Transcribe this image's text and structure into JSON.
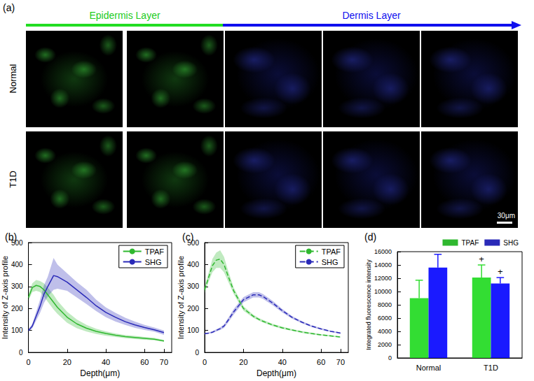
{
  "figure": {
    "panel_a": {
      "label": "(a)",
      "header": [
        "Epidermis Layer",
        "Dermis Layer"
      ],
      "rows": [
        "Normal",
        "T1D"
      ],
      "scale_bar": "30μm"
    }
  },
  "chart_data": [
    {
      "type": "line",
      "title": "(b)",
      "x_label": "Depth(μm)",
      "y_label": "Intensity of Z-axis profile",
      "x": [
        0,
        2,
        4,
        6,
        8,
        10,
        13,
        15,
        20,
        25,
        30,
        35,
        40,
        45,
        50,
        55,
        60,
        65,
        70
      ],
      "xlim": [
        0,
        74
      ],
      "xticks": [
        0,
        20,
        40,
        60,
        70
      ],
      "ylim": [
        0,
        500
      ],
      "yticks": [
        0,
        100,
        200,
        300,
        400,
        500
      ],
      "grid": false,
      "legend": "upper right",
      "series": [
        {
          "name": "TPAF",
          "color": "#2fb82f",
          "line_style": "solid",
          "marker": "none",
          "values": [
            250,
            295,
            305,
            300,
            285,
            262,
            228,
            205,
            160,
            130,
            110,
            96,
            86,
            78,
            72,
            68,
            64,
            60,
            52
          ],
          "lower": [
            235,
            275,
            280,
            275,
            255,
            230,
            195,
            175,
            135,
            110,
            95,
            84,
            76,
            70,
            65,
            61,
            58,
            55,
            48
          ],
          "upper": [
            265,
            315,
            330,
            325,
            315,
            295,
            262,
            235,
            185,
            150,
            125,
            108,
            96,
            86,
            79,
            75,
            70,
            66,
            57
          ]
        },
        {
          "name": "SHG",
          "color": "#2a2ab8",
          "line_style": "solid",
          "marker": "none",
          "values": [
            100,
            120,
            165,
            210,
            265,
            300,
            350,
            345,
            320,
            285,
            250,
            212,
            182,
            160,
            140,
            125,
            113,
            103,
            90
          ],
          "lower": [
            95,
            110,
            145,
            180,
            225,
            255,
            285,
            290,
            280,
            250,
            220,
            188,
            160,
            140,
            125,
            112,
            102,
            94,
            80
          ],
          "upper": [
            105,
            130,
            185,
            240,
            305,
            345,
            430,
            400,
            360,
            320,
            285,
            240,
            205,
            180,
            158,
            140,
            125,
            113,
            100
          ]
        }
      ]
    },
    {
      "type": "line",
      "title": "(c)",
      "x_label": "Depth(μm)",
      "y_label": "Intensity of Z-axis profile",
      "x": [
        0,
        2,
        4,
        6,
        8,
        10,
        12,
        15,
        20,
        25,
        28,
        30,
        35,
        40,
        45,
        50,
        55,
        60,
        65,
        70
      ],
      "xlim": [
        0,
        74
      ],
      "xticks": [
        0,
        20,
        40,
        60,
        70
      ],
      "ylim": [
        0,
        500
      ],
      "yticks": [
        0,
        100,
        200,
        300,
        400,
        500
      ],
      "grid": false,
      "legend": "upper right",
      "series": [
        {
          "name": "TPAF",
          "color": "#2fb82f",
          "line_style": "dashed",
          "marker": "none",
          "values": [
            285,
            340,
            395,
            420,
            425,
            400,
            350,
            280,
            200,
            165,
            150,
            142,
            125,
            112,
            102,
            93,
            86,
            80,
            75,
            70
          ],
          "lower": [
            270,
            320,
            365,
            385,
            385,
            365,
            325,
            265,
            190,
            158,
            144,
            136,
            120,
            107,
            98,
            89,
            82,
            77,
            72,
            67
          ],
          "upper": [
            300,
            360,
            425,
            455,
            465,
            435,
            375,
            295,
            210,
            172,
            156,
            148,
            130,
            117,
            106,
            97,
            90,
            83,
            78,
            73
          ]
        },
        {
          "name": "SHG",
          "color": "#2a2ab8",
          "line_style": "dashed",
          "marker": "none",
          "values": [
            85,
            88,
            92,
            100,
            108,
            120,
            145,
            185,
            240,
            262,
            262,
            255,
            225,
            190,
            160,
            138,
            120,
            107,
            96,
            88
          ],
          "lower": [
            82,
            85,
            88,
            95,
            102,
            112,
            135,
            172,
            228,
            250,
            250,
            244,
            215,
            182,
            154,
            133,
            116,
            103,
            93,
            85
          ],
          "upper": [
            88,
            91,
            96,
            105,
            114,
            128,
            155,
            198,
            252,
            274,
            274,
            266,
            235,
            198,
            166,
            143,
            124,
            111,
            99,
            91
          ]
        }
      ]
    },
    {
      "type": "bar",
      "title": "(d)",
      "y_label": "Integrated fluorescence intensity",
      "categories": [
        "Normal",
        "T1D"
      ],
      "ylim": [
        0,
        16000
      ],
      "yticks": [
        0,
        2000,
        4000,
        6000,
        8000,
        10000,
        12000,
        14000,
        16000
      ],
      "grid": false,
      "legend": "upper right",
      "series": [
        {
          "name": "TPAF",
          "color": "#33dd33",
          "values": [
            9000,
            12100
          ],
          "errors": [
            2700,
            1900
          ]
        },
        {
          "name": "SHG",
          "color": "#1a1aff",
          "values": [
            13600,
            11200
          ],
          "errors": [
            2000,
            900
          ]
        }
      ],
      "annotations": [
        {
          "text": "+",
          "series": "TPAF",
          "category": "T1D"
        },
        {
          "text": "+",
          "series": "SHG",
          "category": "T1D"
        }
      ]
    }
  ]
}
